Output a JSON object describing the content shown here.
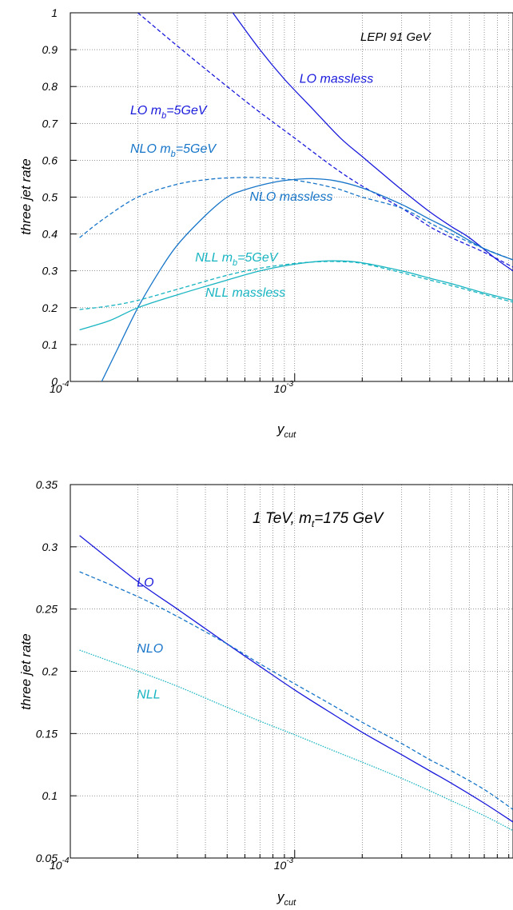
{
  "chart_data": [
    {
      "type": "line",
      "title": "LEPI 91 GeV",
      "xlabel": "y",
      "xlabel_sub": "cut",
      "ylabel": "three jet rate",
      "xscale": "log",
      "xlim": [
        0.0001,
        0.0094
      ],
      "ylim": [
        0,
        1
      ],
      "xticks": [
        {
          "value": 0.0001,
          "base": "10",
          "exp": "-4"
        },
        {
          "value": 0.001,
          "base": "10",
          "exp": "-3"
        }
      ],
      "yticks": [
        {
          "value": 0,
          "label": "0"
        },
        {
          "value": 0.1,
          "label": "0.1"
        },
        {
          "value": 0.2,
          "label": "0.2"
        },
        {
          "value": 0.3,
          "label": "0.3"
        },
        {
          "value": 0.4,
          "label": "0.4"
        },
        {
          "value": 0.5,
          "label": "0.5"
        },
        {
          "value": 0.6,
          "label": "0.6"
        },
        {
          "value": 0.7,
          "label": "0.7"
        },
        {
          "value": 0.8,
          "label": "0.8"
        },
        {
          "value": 0.9,
          "label": "0.9"
        },
        {
          "value": 1,
          "label": "1"
        }
      ],
      "grid": true,
      "series": [
        {
          "key": "lo_massless",
          "color": "#1a1adc",
          "dash": "solid",
          "x": [
            0.00053,
            0.0007,
            0.0009,
            0.0012,
            0.0016,
            0.002,
            0.0025,
            0.003,
            0.004,
            0.005,
            0.006,
            0.008,
            0.0094
          ],
          "y": [
            1.0,
            0.9,
            0.82,
            0.74,
            0.66,
            0.61,
            0.56,
            0.52,
            0.46,
            0.42,
            0.39,
            0.33,
            0.3
          ]
        },
        {
          "key": "lo_mb5",
          "color": "#1a1adc",
          "dash": "5,3",
          "x": [
            0.0002,
            0.0003,
            0.0005,
            0.0007,
            0.001,
            0.0015,
            0.002,
            0.003,
            0.004,
            0.005,
            0.007,
            0.0094
          ],
          "y": [
            1.0,
            0.91,
            0.8,
            0.73,
            0.66,
            0.58,
            0.53,
            0.47,
            0.42,
            0.39,
            0.35,
            0.31
          ]
        },
        {
          "key": "nlo_massless",
          "color": "#1675c9",
          "dash": "solid",
          "x": [
            0.000138,
            0.00016,
            0.0002,
            0.00025,
            0.0003,
            0.0004,
            0.0005,
            0.0006,
            0.0008,
            0.001,
            0.0012,
            0.0015,
            0.002,
            0.003,
            0.004,
            0.005,
            0.007,
            0.0094
          ],
          "y": [
            0.0,
            0.08,
            0.2,
            0.3,
            0.37,
            0.45,
            0.5,
            0.52,
            0.54,
            0.548,
            0.55,
            0.545,
            0.525,
            0.48,
            0.44,
            0.41,
            0.36,
            0.33
          ]
        },
        {
          "key": "nlo_mb5",
          "color": "#1675c9",
          "dash": "5,3",
          "x": [
            0.00011,
            0.00014,
            0.0002,
            0.0003,
            0.0004,
            0.0005,
            0.0007,
            0.001,
            0.0015,
            0.002,
            0.003,
            0.004,
            0.005,
            0.007,
            0.0094
          ],
          "y": [
            0.39,
            0.44,
            0.5,
            0.535,
            0.547,
            0.552,
            0.553,
            0.546,
            0.525,
            0.5,
            0.47,
            0.43,
            0.4,
            0.36,
            0.33
          ]
        },
        {
          "key": "nll_massless",
          "color": "#17b4c1",
          "dash": "solid",
          "x": [
            0.00011,
            0.00015,
            0.0002,
            0.0003,
            0.0005,
            0.0007,
            0.001,
            0.0013,
            0.0016,
            0.002,
            0.003,
            0.004,
            0.005,
            0.007,
            0.0094
          ],
          "y": [
            0.14,
            0.165,
            0.2,
            0.235,
            0.275,
            0.3,
            0.318,
            0.326,
            0.327,
            0.322,
            0.3,
            0.28,
            0.265,
            0.24,
            0.22
          ]
        },
        {
          "key": "nll_mb5",
          "color": "#17b4c1",
          "dash": "5,3",
          "x": [
            0.00011,
            0.00015,
            0.0002,
            0.0003,
            0.0005,
            0.0007,
            0.001,
            0.0013,
            0.0016,
            0.002,
            0.003,
            0.004,
            0.005,
            0.007,
            0.0094
          ],
          "y": [
            0.195,
            0.205,
            0.22,
            0.25,
            0.288,
            0.307,
            0.32,
            0.325,
            0.325,
            0.32,
            0.295,
            0.275,
            0.26,
            0.236,
            0.215
          ]
        }
      ],
      "labels": [
        {
          "text": "LO massless",
          "color": "#1a1adc",
          "x": 0.00105,
          "y": 0.81
        },
        {
          "text": "LO m",
          "sub": "b",
          "rest": "=5GeV",
          "color": "#1a1adc",
          "x": 0.000185,
          "y": 0.725
        },
        {
          "text": "NLO m",
          "sub": "b",
          "rest": "=5GeV",
          "color": "#1675c9",
          "x": 0.000185,
          "y": 0.62
        },
        {
          "text": "NLO massless",
          "color": "#1675c9",
          "x": 0.00063,
          "y": 0.49
        },
        {
          "text": "NLL m",
          "sub": "b",
          "rest": "=5GeV",
          "color": "#17b4c1",
          "x": 0.00036,
          "y": 0.325
        },
        {
          "text": "NLL massless",
          "color": "#17b4c1",
          "x": 0.0004,
          "y": 0.23
        }
      ]
    },
    {
      "type": "line",
      "title": "1 TeV, m",
      "title_sub": "t",
      "title_rest": "=175 GeV",
      "xlabel": "y",
      "xlabel_sub": "cut",
      "ylabel": "three jet rate",
      "xscale": "log",
      "xlim": [
        0.0001,
        0.0094
      ],
      "ylim": [
        0.05,
        0.35
      ],
      "xticks": [
        {
          "value": 0.0001,
          "base": "10",
          "exp": "-4"
        },
        {
          "value": 0.001,
          "base": "10",
          "exp": "-3"
        }
      ],
      "yticks": [
        {
          "value": 0.05,
          "label": "0.05"
        },
        {
          "value": 0.1,
          "label": "0.1"
        },
        {
          "value": 0.15,
          "label": "0.15"
        },
        {
          "value": 0.2,
          "label": "0.2"
        },
        {
          "value": 0.25,
          "label": "0.25"
        },
        {
          "value": 0.3,
          "label": "0.3"
        },
        {
          "value": 0.35,
          "label": "0.35"
        }
      ],
      "grid": true,
      "series": [
        {
          "key": "lo",
          "color": "#1a1adc",
          "dash": "solid",
          "x": [
            0.00011,
            0.0002,
            0.0003,
            0.0005,
            0.0007,
            0.001,
            0.0015,
            0.002,
            0.003,
            0.004,
            0.005,
            0.007,
            0.0094
          ],
          "y": [
            0.309,
            0.272,
            0.25,
            0.222,
            0.204,
            0.185,
            0.165,
            0.151,
            0.133,
            0.12,
            0.11,
            0.094,
            0.079
          ]
        },
        {
          "key": "nlo",
          "color": "#1675c9",
          "dash": "5,3",
          "x": [
            0.00011,
            0.0002,
            0.0003,
            0.0005,
            0.0007,
            0.001,
            0.0015,
            0.002,
            0.003,
            0.004,
            0.005,
            0.007,
            0.0094
          ],
          "y": [
            0.28,
            0.26,
            0.244,
            0.222,
            0.206,
            0.19,
            0.172,
            0.159,
            0.142,
            0.129,
            0.12,
            0.105,
            0.089
          ]
        },
        {
          "key": "nll",
          "color": "#17b4c1",
          "dash": "1.5,1.5",
          "x": [
            0.00011,
            0.0002,
            0.0003,
            0.0005,
            0.0007,
            0.001,
            0.0015,
            0.002,
            0.003,
            0.004,
            0.005,
            0.007,
            0.0094
          ],
          "y": [
            0.217,
            0.2,
            0.188,
            0.171,
            0.16,
            0.149,
            0.136,
            0.127,
            0.114,
            0.104,
            0.096,
            0.084,
            0.072
          ]
        }
      ],
      "labels": [
        {
          "text": "LO",
          "color": "#1a1adc",
          "x": 0.000198,
          "y": 0.268
        },
        {
          "text": "NLO",
          "color": "#1675c9",
          "x": 0.000198,
          "y": 0.215
        },
        {
          "text": "NLL",
          "color": "#17b4c1",
          "x": 0.000198,
          "y": 0.178
        }
      ]
    }
  ]
}
